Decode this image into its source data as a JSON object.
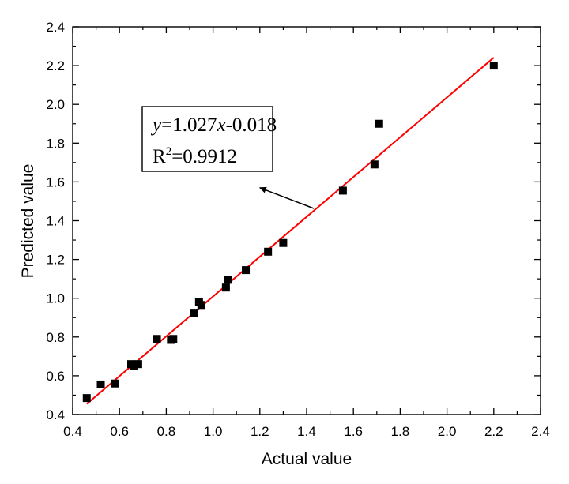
{
  "chart_data": {
    "type": "scatter",
    "title": "",
    "xlabel": "Actual value",
    "ylabel": "Predicted value",
    "xlim": [
      0.4,
      2.4
    ],
    "ylim": [
      0.4,
      2.4
    ],
    "xticks": [
      "0.4",
      "0.6",
      "0.8",
      "1.0",
      "1.2",
      "1.4",
      "1.6",
      "1.8",
      "2.0",
      "2.2",
      "2.4"
    ],
    "yticks": [
      "0.4",
      "0.6",
      "0.8",
      "1.0",
      "1.2",
      "1.4",
      "1.6",
      "1.8",
      "2.0",
      "2.2",
      "2.4"
    ],
    "grid": false,
    "legend": "none",
    "marker_color": "#000000",
    "fit_line_color": "#ff0000",
    "points": [
      {
        "x": 0.46,
        "y": 0.485
      },
      {
        "x": 0.52,
        "y": 0.555
      },
      {
        "x": 0.58,
        "y": 0.56
      },
      {
        "x": 0.65,
        "y": 0.66
      },
      {
        "x": 0.66,
        "y": 0.65
      },
      {
        "x": 0.68,
        "y": 0.66
      },
      {
        "x": 0.76,
        "y": 0.79
      },
      {
        "x": 0.82,
        "y": 0.785
      },
      {
        "x": 0.83,
        "y": 0.79
      },
      {
        "x": 0.92,
        "y": 0.925
      },
      {
        "x": 0.94,
        "y": 0.98
      },
      {
        "x": 0.95,
        "y": 0.965
      },
      {
        "x": 1.055,
        "y": 1.055
      },
      {
        "x": 1.065,
        "y": 1.095
      },
      {
        "x": 1.14,
        "y": 1.145
      },
      {
        "x": 1.235,
        "y": 1.24
      },
      {
        "x": 1.3,
        "y": 1.285
      },
      {
        "x": 1.555,
        "y": 1.555
      },
      {
        "x": 1.69,
        "y": 1.69
      },
      {
        "x": 1.71,
        "y": 1.9
      },
      {
        "x": 2.2,
        "y": 2.2
      }
    ],
    "fit_line": {
      "slope": 1.027,
      "intercept": -0.018,
      "x_range": [
        0.46,
        2.2
      ]
    },
    "annotation": {
      "eq_var_y": "y",
      "eq_mid": "=1.027",
      "eq_var_x": "x",
      "eq_tail": "-0.018",
      "r2_base": "R",
      "r2_sup": "2",
      "r2_value": "=0.9912",
      "arrow_target": {
        "x": 1.2,
        "y": 1.57
      }
    }
  }
}
